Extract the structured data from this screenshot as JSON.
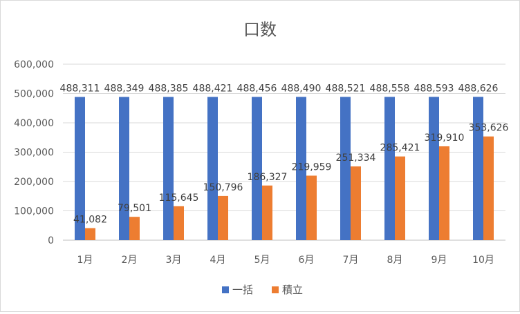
{
  "chart_data": {
    "type": "bar",
    "title": "口数",
    "categories": [
      "1月",
      "2月",
      "3月",
      "4月",
      "5月",
      "6月",
      "7月",
      "8月",
      "9月",
      "10月"
    ],
    "ylim": [
      0,
      600000
    ],
    "yticks": [
      0,
      100000,
      200000,
      300000,
      400000,
      500000,
      600000
    ],
    "ytick_labels": [
      "0",
      "100,000",
      "200,000",
      "300,000",
      "400,000",
      "500,000",
      "600,000"
    ],
    "grid": true,
    "legend_position": "bottom",
    "series": [
      {
        "name": "一括",
        "color": "#4472c4",
        "values": [
          488311,
          488349,
          488385,
          488421,
          488456,
          488490,
          488521,
          488558,
          488593,
          488626
        ],
        "labels": [
          "488,311",
          "488,349",
          "488,385",
          "488,421",
          "488,456",
          "488,490",
          "488,521",
          "488,558",
          "488,593",
          "488,626"
        ]
      },
      {
        "name": "積立",
        "color": "#ed7d31",
        "values": [
          41082,
          79501,
          115645,
          150796,
          186327,
          219959,
          251334,
          285421,
          319910,
          353626
        ],
        "labels": [
          "41,082",
          "79,501",
          "115,645",
          "150,796",
          "186,327",
          "219,959",
          "251,334",
          "285,421",
          "319,910",
          "353,626"
        ]
      }
    ]
  }
}
